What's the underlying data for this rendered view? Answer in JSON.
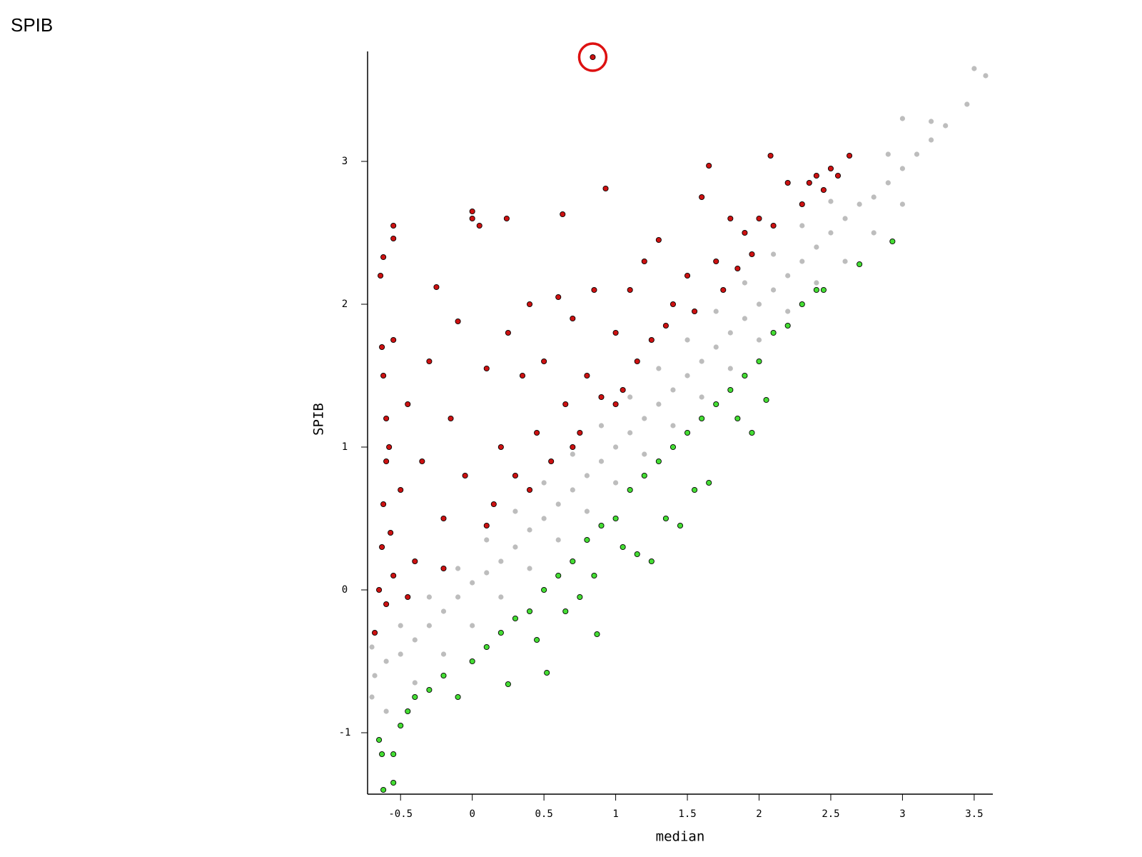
{
  "chart_data": {
    "type": "scatter",
    "title": "SPIB",
    "xlabel": "median",
    "ylabel": "SPIB",
    "xlim": [
      -0.73,
      3.63
    ],
    "ylim": [
      -1.43,
      3.77
    ],
    "xticks": [
      -0.5,
      0,
      0.5,
      1,
      1.5,
      2,
      2.5,
      3,
      3.5
    ],
    "yticks": [
      -1,
      0,
      1,
      2,
      3
    ],
    "series": [
      {
        "color": "#bdbdbd",
        "x": [
          -0.68,
          -0.6,
          -0.5,
          -0.4,
          -0.3,
          -0.2,
          -0.1,
          0,
          0.1,
          0.2,
          0.3,
          0.4,
          0.5,
          0.6,
          0.7,
          0.8,
          0.9,
          1,
          1.1,
          1.2,
          1.3,
          1.4,
          1.5,
          1.6,
          1.7,
          1.8,
          1.9,
          2,
          2.1,
          2.2,
          2.3,
          2.4,
          2.5,
          2.6,
          2.7,
          2.8,
          2.9,
          3.0,
          3.1,
          3.2,
          3.3,
          3.45,
          3.5,
          3.58,
          -0.7,
          -0.5,
          -0.3,
          -0.1,
          0.1,
          0.3,
          0.5,
          0.7,
          0.9,
          1.1,
          1.3,
          1.5,
          1.7,
          1.9,
          2.1,
          2.3,
          2.5,
          2.9,
          3.0,
          3.2,
          -0.7,
          -0.6,
          -0.4,
          -0.2,
          0,
          0.2,
          0.4,
          0.6,
          0.8,
          1,
          1.2,
          1.4,
          1.6,
          1.8,
          2,
          2.2,
          2.4,
          2.6,
          2.8,
          3.0
        ],
        "values": [
          -0.6,
          -0.5,
          -0.45,
          -0.35,
          -0.25,
          -0.15,
          -0.05,
          0.05,
          0.12,
          0.2,
          0.3,
          0.42,
          0.5,
          0.6,
          0.7,
          0.8,
          0.9,
          1,
          1.1,
          1.2,
          1.3,
          1.4,
          1.5,
          1.6,
          1.7,
          1.8,
          1.9,
          2,
          2.1,
          2.2,
          2.3,
          2.4,
          2.5,
          2.6,
          2.7,
          2.75,
          2.85,
          2.95,
          3.05,
          3.15,
          3.25,
          3.4,
          3.65,
          3.6,
          -0.4,
          -0.25,
          -0.05,
          0.15,
          0.35,
          0.55,
          0.75,
          0.95,
          1.15,
          1.35,
          1.55,
          1.75,
          1.95,
          2.15,
          2.35,
          2.55,
          2.72,
          3.05,
          3.3,
          3.28,
          -0.75,
          -0.85,
          -0.65,
          -0.45,
          -0.25,
          -0.05,
          0.15,
          0.35,
          0.55,
          0.75,
          0.95,
          1.15,
          1.35,
          1.55,
          1.75,
          1.95,
          2.15,
          2.3,
          2.5,
          2.7
        ]
      },
      {
        "color": "#44dd33",
        "edgecolor": "#000000",
        "x": [
          -0.65,
          -0.63,
          -0.62,
          -0.55,
          -0.55,
          -0.5,
          -0.45,
          -0.4,
          -0.3,
          -0.2,
          -0.1,
          0,
          0.1,
          0.2,
          0.25,
          0.3,
          0.4,
          0.45,
          0.52,
          0.5,
          0.6,
          0.65,
          0.7,
          0.75,
          0.8,
          0.85,
          0.87,
          0.9,
          1.0,
          1.05,
          1.1,
          1.15,
          1.2,
          1.25,
          1.3,
          1.35,
          1.4,
          1.45,
          1.5,
          1.55,
          1.6,
          1.65,
          1.7,
          1.8,
          1.85,
          1.9,
          1.95,
          2.0,
          2.05,
          2.1,
          2.2,
          2.3,
          2.4,
          2.45,
          2.7,
          2.93
        ],
        "values": [
          -1.05,
          -1.15,
          -1.4,
          -1.35,
          -1.15,
          -0.95,
          -0.85,
          -0.75,
          -0.7,
          -0.6,
          -0.75,
          -0.5,
          -0.4,
          -0.3,
          -0.66,
          -0.2,
          -0.15,
          -0.35,
          -0.58,
          0.0,
          0.1,
          -0.15,
          0.2,
          -0.05,
          0.35,
          0.1,
          -0.31,
          0.45,
          0.5,
          0.3,
          0.7,
          0.25,
          0.8,
          0.2,
          0.9,
          0.5,
          1.0,
          0.45,
          1.1,
          0.7,
          1.2,
          0.75,
          1.3,
          1.4,
          1.2,
          1.5,
          1.1,
          1.6,
          1.33,
          1.8,
          1.85,
          2.0,
          2.1,
          2.1,
          2.28,
          2.44
        ]
      },
      {
        "color": "#cc1111",
        "edgecolor": "#000000",
        "x": [
          -0.68,
          -0.65,
          -0.63,
          -0.62,
          -0.6,
          -0.6,
          -0.62,
          -0.63,
          -0.64,
          -0.62,
          -0.55,
          -0.55,
          -0.55,
          -0.58,
          -0.57,
          -0.6,
          -0.55,
          -0.5,
          -0.45,
          -0.4,
          -0.35,
          -0.3,
          -0.25,
          -0.2,
          -0.15,
          -0.1,
          -0.05,
          0,
          0,
          0.05,
          0.1,
          0.15,
          0.2,
          0.24,
          0.25,
          0.3,
          0.35,
          0.4,
          0.45,
          0.5,
          0.55,
          0.6,
          0.63,
          0.65,
          0.7,
          0.75,
          0.8,
          0.85,
          0.93,
          0.9,
          1.0,
          1.05,
          1.1,
          1.15,
          1.2,
          1.25,
          1.3,
          1.35,
          1.4,
          1.5,
          1.55,
          1.6,
          1.65,
          1.7,
          1.75,
          1.8,
          1.85,
          1.9,
          1.95,
          2.0,
          2.08,
          2.1,
          2.2,
          2.3,
          2.4,
          2.5,
          2.55,
          2.63,
          2.45,
          2.35,
          1.0,
          0.7,
          0.4,
          0.1,
          -0.2,
          -0.45
        ],
        "values": [
          -0.3,
          0.0,
          0.3,
          0.6,
          0.9,
          1.2,
          1.5,
          1.7,
          2.2,
          2.33,
          2.55,
          2.46,
          1.75,
          1.0,
          0.4,
          -0.1,
          0.1,
          0.7,
          1.3,
          0.2,
          0.9,
          1.6,
          2.12,
          0.5,
          1.2,
          1.88,
          0.8,
          2.65,
          2.6,
          2.55,
          1.55,
          0.6,
          1.0,
          2.6,
          1.8,
          0.8,
          1.5,
          2.0,
          1.1,
          1.6,
          0.9,
          2.05,
          2.63,
          1.3,
          1.9,
          1.1,
          1.5,
          2.1,
          2.81,
          1.35,
          1.8,
          1.4,
          2.1,
          1.6,
          2.3,
          1.75,
          2.45,
          1.85,
          2.0,
          2.2,
          1.95,
          2.75,
          2.97,
          2.3,
          2.1,
          2.6,
          2.25,
          2.5,
          2.35,
          2.6,
          3.04,
          2.55,
          2.85,
          2.7,
          2.9,
          2.95,
          2.9,
          3.04,
          2.8,
          2.85,
          1.3,
          1.0,
          0.7,
          0.45,
          0.15,
          -0.05
        ]
      },
      {
        "color": "#cc1111",
        "edgecolor": "#000000",
        "circled": "#dd1111",
        "x": [
          0.84
        ],
        "values": [
          3.73
        ]
      }
    ]
  }
}
